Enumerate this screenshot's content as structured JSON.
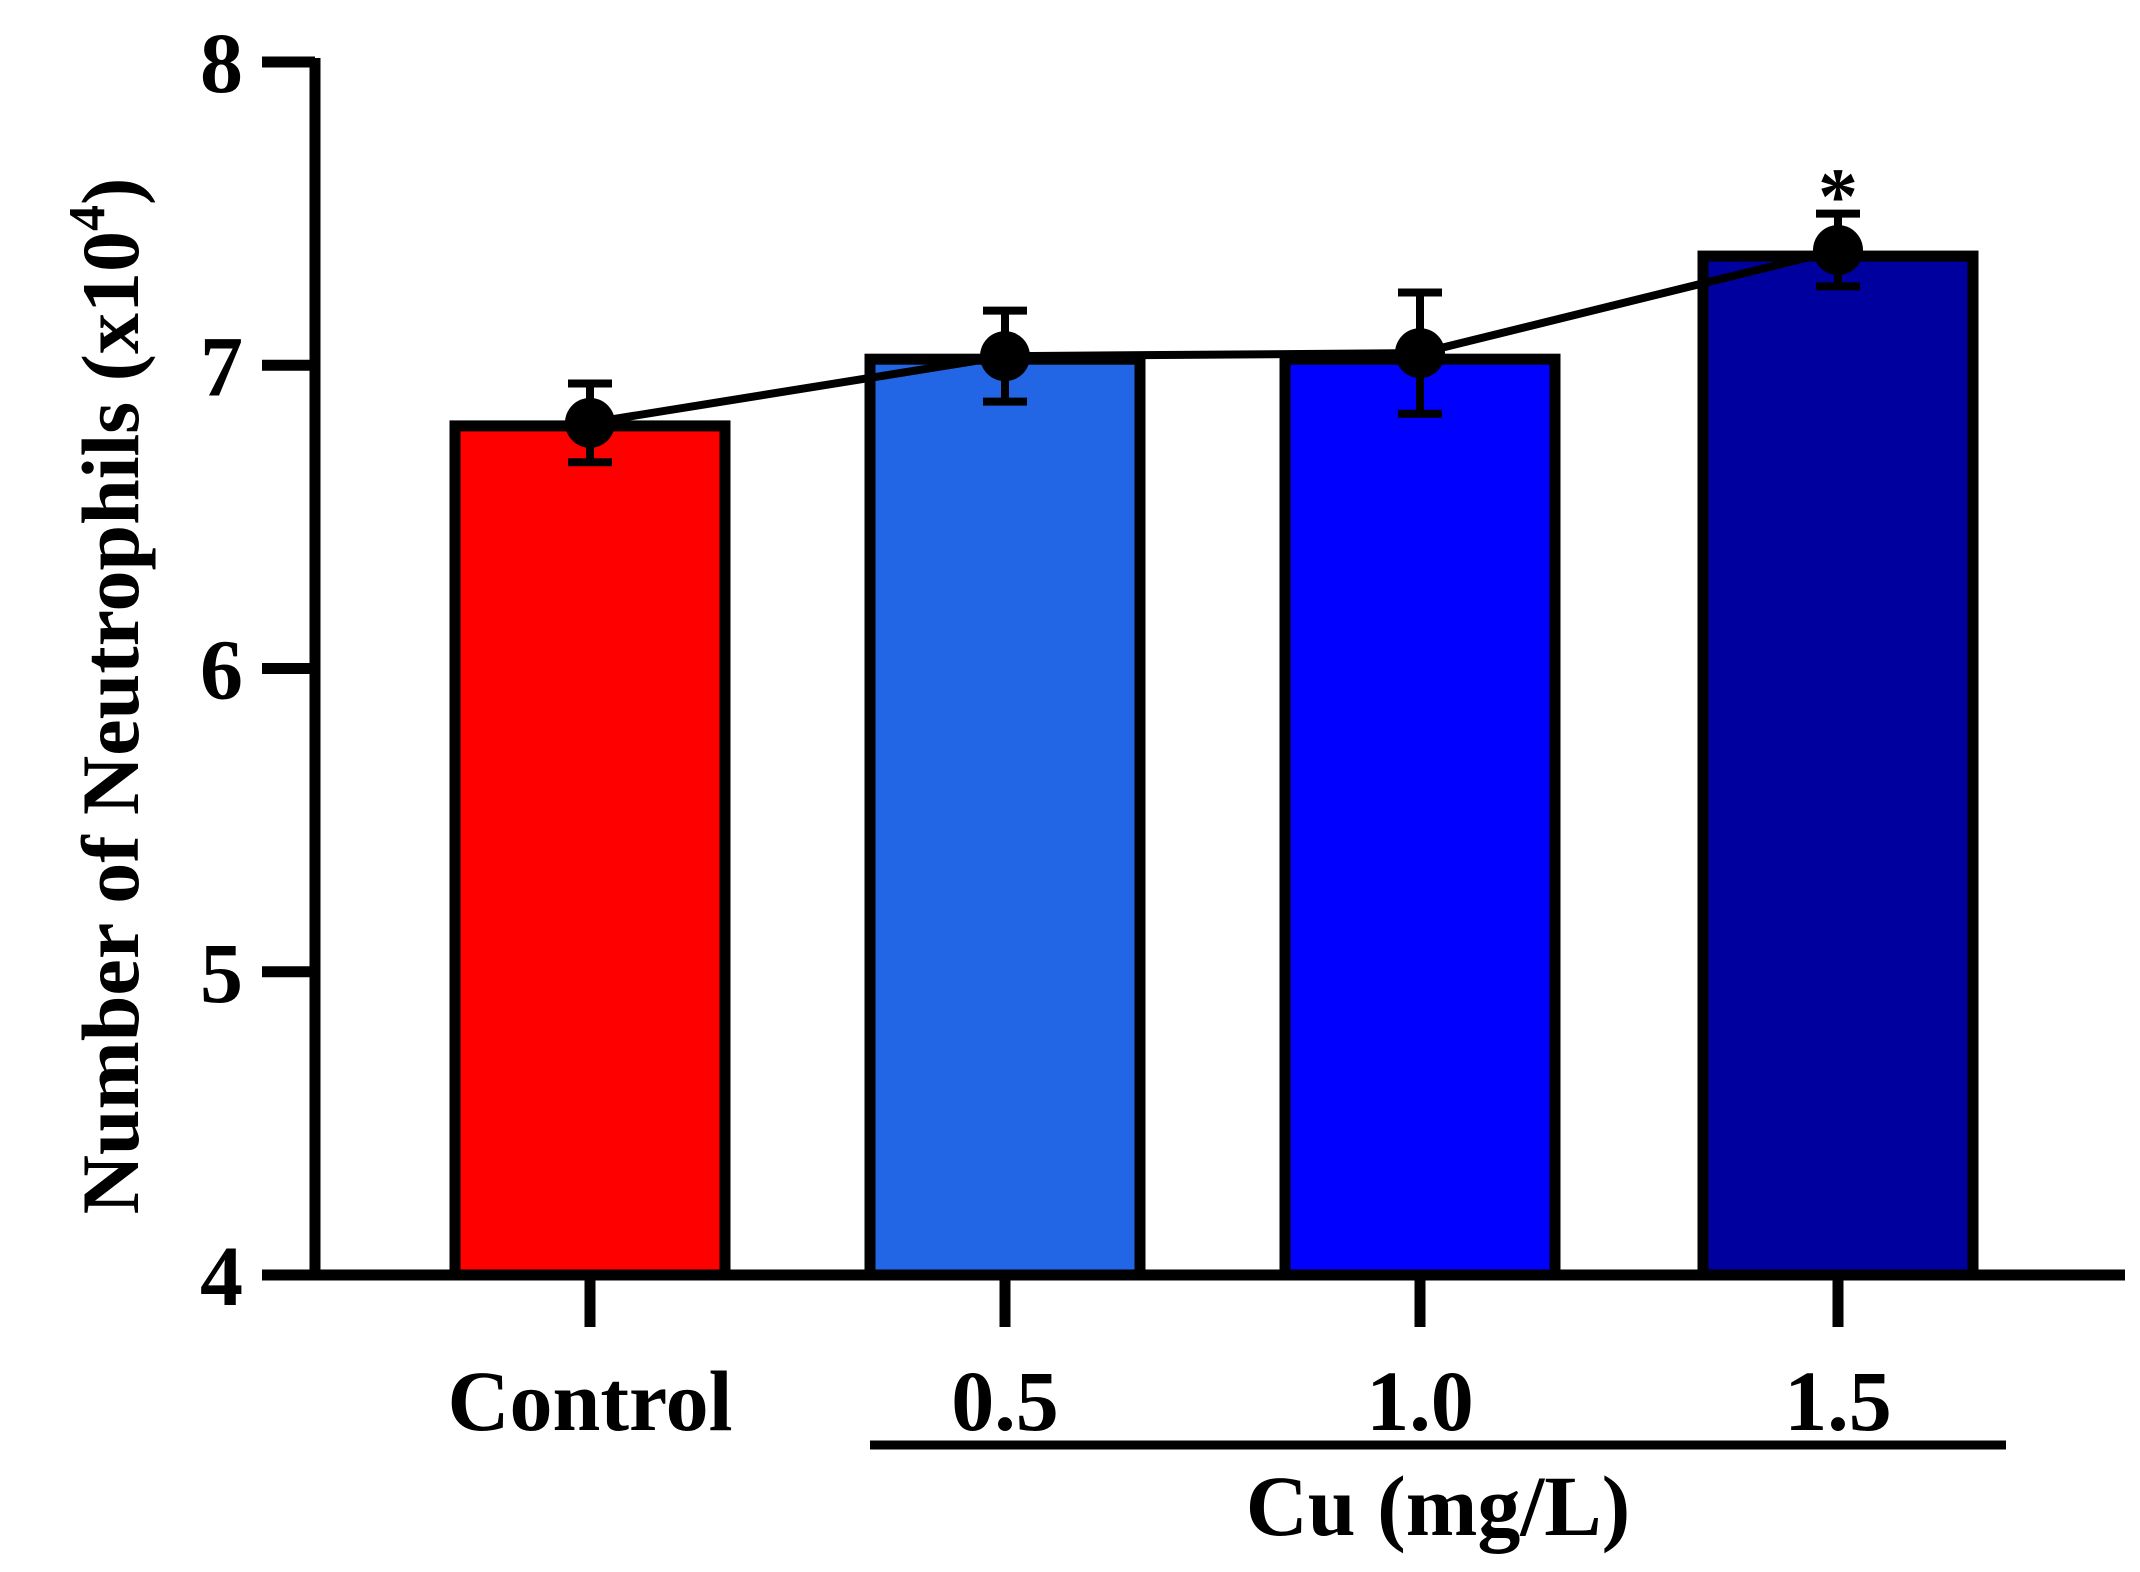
{
  "chart_data": {
    "type": "bar",
    "categories": [
      "Control",
      "0.5",
      "1.0",
      "1.5"
    ],
    "values": [
      6.8,
      7.02,
      7.02,
      7.36
    ],
    "error": [
      0.13,
      0.15,
      0.2,
      0.12
    ],
    "line_values": [
      6.81,
      7.03,
      7.04,
      7.38
    ],
    "bar_colors": [
      "#ff0000",
      "#2266e6",
      "#0000ff",
      "#00009e"
    ],
    "ylabel_main": "Number of  Neutrophils (x10",
    "ylabel_sup": "4",
    "ylabel_close": ")",
    "xlabel": "",
    "group_label": "Cu (mg/L)",
    "group_members": [
      "0.5",
      "1.0",
      "1.5"
    ],
    "ylim": [
      4,
      8
    ],
    "yticks": [
      4,
      5,
      6,
      7,
      8
    ],
    "annotations": [
      {
        "category": "1.5",
        "text": "*"
      }
    ],
    "grid": false,
    "legend": "none"
  }
}
